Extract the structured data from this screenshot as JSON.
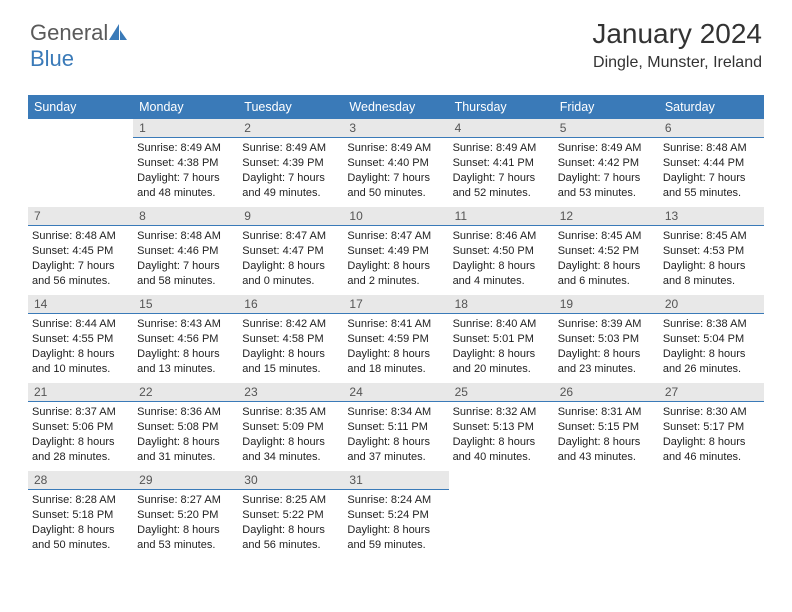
{
  "logo": {
    "text1": "General",
    "text2": "Blue",
    "sail_color": "#3a7ab8"
  },
  "header": {
    "title": "January 2024",
    "location": "Dingle, Munster, Ireland"
  },
  "colors": {
    "header_bg": "#3a7ab8",
    "header_text": "#ffffff",
    "daynum_bg": "#e8e8e8",
    "daynum_border": "#3a7ab8",
    "body_text": "#222222"
  },
  "weekdays": [
    "Sunday",
    "Monday",
    "Tuesday",
    "Wednesday",
    "Thursday",
    "Friday",
    "Saturday"
  ],
  "cells": [
    {
      "blank": true
    },
    {
      "day": "1",
      "sunrise": "Sunrise: 8:49 AM",
      "sunset": "Sunset: 4:38 PM",
      "dl1": "Daylight: 7 hours",
      "dl2": "and 48 minutes."
    },
    {
      "day": "2",
      "sunrise": "Sunrise: 8:49 AM",
      "sunset": "Sunset: 4:39 PM",
      "dl1": "Daylight: 7 hours",
      "dl2": "and 49 minutes."
    },
    {
      "day": "3",
      "sunrise": "Sunrise: 8:49 AM",
      "sunset": "Sunset: 4:40 PM",
      "dl1": "Daylight: 7 hours",
      "dl2": "and 50 minutes."
    },
    {
      "day": "4",
      "sunrise": "Sunrise: 8:49 AM",
      "sunset": "Sunset: 4:41 PM",
      "dl1": "Daylight: 7 hours",
      "dl2": "and 52 minutes."
    },
    {
      "day": "5",
      "sunrise": "Sunrise: 8:49 AM",
      "sunset": "Sunset: 4:42 PM",
      "dl1": "Daylight: 7 hours",
      "dl2": "and 53 minutes."
    },
    {
      "day": "6",
      "sunrise": "Sunrise: 8:48 AM",
      "sunset": "Sunset: 4:44 PM",
      "dl1": "Daylight: 7 hours",
      "dl2": "and 55 minutes."
    },
    {
      "day": "7",
      "sunrise": "Sunrise: 8:48 AM",
      "sunset": "Sunset: 4:45 PM",
      "dl1": "Daylight: 7 hours",
      "dl2": "and 56 minutes."
    },
    {
      "day": "8",
      "sunrise": "Sunrise: 8:48 AM",
      "sunset": "Sunset: 4:46 PM",
      "dl1": "Daylight: 7 hours",
      "dl2": "and 58 minutes."
    },
    {
      "day": "9",
      "sunrise": "Sunrise: 8:47 AM",
      "sunset": "Sunset: 4:47 PM",
      "dl1": "Daylight: 8 hours",
      "dl2": "and 0 minutes."
    },
    {
      "day": "10",
      "sunrise": "Sunrise: 8:47 AM",
      "sunset": "Sunset: 4:49 PM",
      "dl1": "Daylight: 8 hours",
      "dl2": "and 2 minutes."
    },
    {
      "day": "11",
      "sunrise": "Sunrise: 8:46 AM",
      "sunset": "Sunset: 4:50 PM",
      "dl1": "Daylight: 8 hours",
      "dl2": "and 4 minutes."
    },
    {
      "day": "12",
      "sunrise": "Sunrise: 8:45 AM",
      "sunset": "Sunset: 4:52 PM",
      "dl1": "Daylight: 8 hours",
      "dl2": "and 6 minutes."
    },
    {
      "day": "13",
      "sunrise": "Sunrise: 8:45 AM",
      "sunset": "Sunset: 4:53 PM",
      "dl1": "Daylight: 8 hours",
      "dl2": "and 8 minutes."
    },
    {
      "day": "14",
      "sunrise": "Sunrise: 8:44 AM",
      "sunset": "Sunset: 4:55 PM",
      "dl1": "Daylight: 8 hours",
      "dl2": "and 10 minutes."
    },
    {
      "day": "15",
      "sunrise": "Sunrise: 8:43 AM",
      "sunset": "Sunset: 4:56 PM",
      "dl1": "Daylight: 8 hours",
      "dl2": "and 13 minutes."
    },
    {
      "day": "16",
      "sunrise": "Sunrise: 8:42 AM",
      "sunset": "Sunset: 4:58 PM",
      "dl1": "Daylight: 8 hours",
      "dl2": "and 15 minutes."
    },
    {
      "day": "17",
      "sunrise": "Sunrise: 8:41 AM",
      "sunset": "Sunset: 4:59 PM",
      "dl1": "Daylight: 8 hours",
      "dl2": "and 18 minutes."
    },
    {
      "day": "18",
      "sunrise": "Sunrise: 8:40 AM",
      "sunset": "Sunset: 5:01 PM",
      "dl1": "Daylight: 8 hours",
      "dl2": "and 20 minutes."
    },
    {
      "day": "19",
      "sunrise": "Sunrise: 8:39 AM",
      "sunset": "Sunset: 5:03 PM",
      "dl1": "Daylight: 8 hours",
      "dl2": "and 23 minutes."
    },
    {
      "day": "20",
      "sunrise": "Sunrise: 8:38 AM",
      "sunset": "Sunset: 5:04 PM",
      "dl1": "Daylight: 8 hours",
      "dl2": "and 26 minutes."
    },
    {
      "day": "21",
      "sunrise": "Sunrise: 8:37 AM",
      "sunset": "Sunset: 5:06 PM",
      "dl1": "Daylight: 8 hours",
      "dl2": "and 28 minutes."
    },
    {
      "day": "22",
      "sunrise": "Sunrise: 8:36 AM",
      "sunset": "Sunset: 5:08 PM",
      "dl1": "Daylight: 8 hours",
      "dl2": "and 31 minutes."
    },
    {
      "day": "23",
      "sunrise": "Sunrise: 8:35 AM",
      "sunset": "Sunset: 5:09 PM",
      "dl1": "Daylight: 8 hours",
      "dl2": "and 34 minutes."
    },
    {
      "day": "24",
      "sunrise": "Sunrise: 8:34 AM",
      "sunset": "Sunset: 5:11 PM",
      "dl1": "Daylight: 8 hours",
      "dl2": "and 37 minutes."
    },
    {
      "day": "25",
      "sunrise": "Sunrise: 8:32 AM",
      "sunset": "Sunset: 5:13 PM",
      "dl1": "Daylight: 8 hours",
      "dl2": "and 40 minutes."
    },
    {
      "day": "26",
      "sunrise": "Sunrise: 8:31 AM",
      "sunset": "Sunset: 5:15 PM",
      "dl1": "Daylight: 8 hours",
      "dl2": "and 43 minutes."
    },
    {
      "day": "27",
      "sunrise": "Sunrise: 8:30 AM",
      "sunset": "Sunset: 5:17 PM",
      "dl1": "Daylight: 8 hours",
      "dl2": "and 46 minutes."
    },
    {
      "day": "28",
      "sunrise": "Sunrise: 8:28 AM",
      "sunset": "Sunset: 5:18 PM",
      "dl1": "Daylight: 8 hours",
      "dl2": "and 50 minutes."
    },
    {
      "day": "29",
      "sunrise": "Sunrise: 8:27 AM",
      "sunset": "Sunset: 5:20 PM",
      "dl1": "Daylight: 8 hours",
      "dl2": "and 53 minutes."
    },
    {
      "day": "30",
      "sunrise": "Sunrise: 8:25 AM",
      "sunset": "Sunset: 5:22 PM",
      "dl1": "Daylight: 8 hours",
      "dl2": "and 56 minutes."
    },
    {
      "day": "31",
      "sunrise": "Sunrise: 8:24 AM",
      "sunset": "Sunset: 5:24 PM",
      "dl1": "Daylight: 8 hours",
      "dl2": "and 59 minutes."
    },
    {
      "blank": true
    },
    {
      "blank": true
    },
    {
      "blank": true
    }
  ]
}
